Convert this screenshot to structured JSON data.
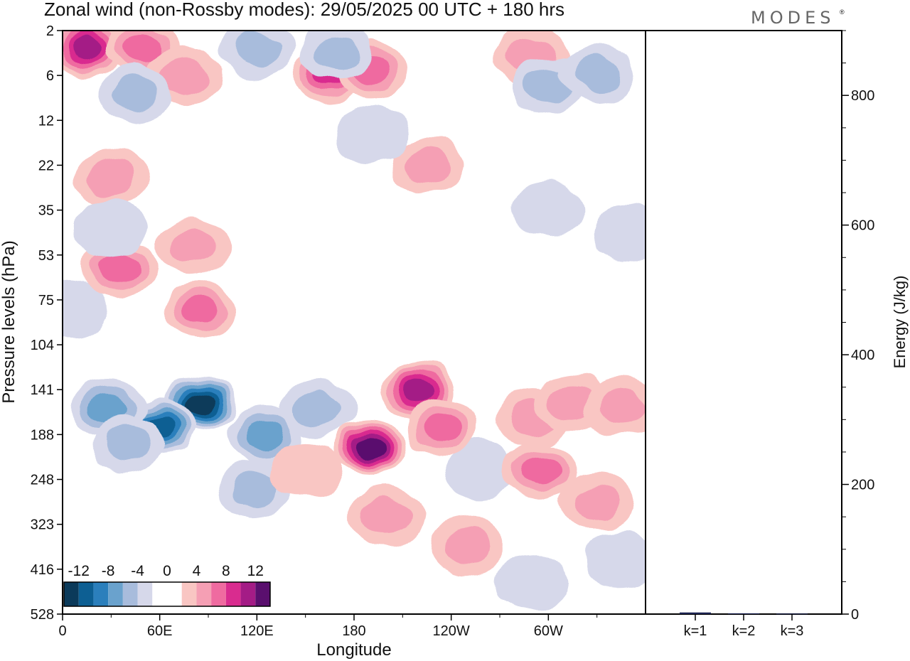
{
  "title": "Zonal wind (non-Rossby modes):  29/05/2025  00 UTC  + 180 hrs",
  "brand": "MODES",
  "brand_mark": "®",
  "colors": {
    "negative": [
      "#0b3a5a",
      "#0d5f93",
      "#2b7fbc",
      "#6aa2cd",
      "#a8bcdc",
      "#d6d8ea"
    ],
    "zero": "#ffffff",
    "positive": [
      "#f9c6c3",
      "#f59fb4",
      "#ef6ba0",
      "#d92c8f",
      "#a41c86",
      "#5a0f6e"
    ],
    "bar": "#1d2452",
    "axis": "#000000"
  },
  "chart_data": [
    {
      "type": "heatmap",
      "title": "Zonal wind (non-Rossby modes):  29/05/2025  00 UTC  + 180 hrs",
      "xlabel": "Longitude",
      "ylabel": "Pressure levels (hPa)",
      "x_ticks": [
        "0",
        "60E",
        "120E",
        "180",
        "120W",
        "60W"
      ],
      "x_tick_degrees": [
        0,
        60,
        120,
        180,
        240,
        300
      ],
      "x_range": [
        0,
        360
      ],
      "y_ticks": [
        "2",
        "6",
        "12",
        "22",
        "35",
        "53",
        "75",
        "104",
        "141",
        "188",
        "248",
        "323",
        "416",
        "528"
      ],
      "legend": {
        "position": "bottom-left",
        "labels": [
          "-12",
          "-8",
          "-4",
          "0",
          "4",
          "8",
          "12"
        ],
        "levels": [
          -12,
          -10,
          -8,
          -6,
          -4,
          -2,
          0,
          2,
          4,
          6,
          8,
          10,
          12
        ]
      },
      "features": [
        {
          "lon": 85,
          "level": 8.3,
          "value": -13
        },
        {
          "lon": 60,
          "level": 8.8,
          "value": -10
        },
        {
          "lon": 28,
          "level": 8.4,
          "value": -6
        },
        {
          "lon": 125,
          "level": 9.0,
          "value": -6
        },
        {
          "lon": 118,
          "level": 10.2,
          "value": -4
        },
        {
          "lon": 40,
          "level": 9.2,
          "value": -4
        },
        {
          "lon": 5,
          "level": 6.2,
          "value": -2
        },
        {
          "lon": 158,
          "level": 8.4,
          "value": -3
        },
        {
          "lon": 258,
          "level": 9.8,
          "value": -2
        },
        {
          "lon": 290,
          "level": 12.3,
          "value": -2
        },
        {
          "lon": 345,
          "level": 11.8,
          "value": -2
        },
        {
          "lon": 190,
          "level": 9.3,
          "value": 12
        },
        {
          "lon": 220,
          "level": 8.0,
          "value": 9
        },
        {
          "lon": 235,
          "level": 8.8,
          "value": 5
        },
        {
          "lon": 295,
          "level": 9.8,
          "value": 6
        },
        {
          "lon": 290,
          "level": 8.6,
          "value": 4
        },
        {
          "lon": 315,
          "level": 8.3,
          "value": 4
        },
        {
          "lon": 345,
          "level": 8.4,
          "value": 3
        },
        {
          "lon": 250,
          "level": 11.5,
          "value": 3
        },
        {
          "lon": 330,
          "level": 10.5,
          "value": 3
        },
        {
          "lon": 200,
          "level": 10.8,
          "value": 4
        },
        {
          "lon": 150,
          "level": 9.8,
          "value": 2
        },
        {
          "lon": 85,
          "level": 6.2,
          "value": 5
        },
        {
          "lon": 35,
          "level": 5.3,
          "value": 5
        },
        {
          "lon": 15,
          "level": 0.4,
          "value": 9
        },
        {
          "lon": 50,
          "level": 0.4,
          "value": 5
        },
        {
          "lon": 75,
          "level": 1.0,
          "value": 4
        },
        {
          "lon": 165,
          "level": 1.0,
          "value": 8
        },
        {
          "lon": 190,
          "level": 0.9,
          "value": 5
        },
        {
          "lon": 290,
          "level": 0.6,
          "value": 4
        },
        {
          "lon": 45,
          "level": 1.4,
          "value": -4
        },
        {
          "lon": 170,
          "level": 0.5,
          "value": -4
        },
        {
          "lon": 300,
          "level": 1.2,
          "value": -4
        },
        {
          "lon": 330,
          "level": 1.0,
          "value": -3
        },
        {
          "lon": 120,
          "level": 0.4,
          "value": -3
        },
        {
          "lon": 80,
          "level": 4.8,
          "value": 3
        },
        {
          "lon": 225,
          "level": 3.0,
          "value": 3
        },
        {
          "lon": 30,
          "level": 3.3,
          "value": 3
        },
        {
          "lon": 30,
          "level": 4.4,
          "value": -2
        },
        {
          "lon": 190,
          "level": 2.3,
          "value": -2
        },
        {
          "lon": 350,
          "level": 4.5,
          "value": -2
        },
        {
          "lon": 300,
          "level": 4.0,
          "value": -2
        }
      ]
    },
    {
      "type": "bar",
      "categories": [
        "k=1",
        "k=2",
        "k=3"
      ],
      "values": [
        2.5,
        1.2,
        0.8
      ],
      "ylabel": "Energy (J/kg)",
      "y_ticks": [
        "0",
        "200",
        "400",
        "600",
        "800"
      ],
      "ylim": [
        0,
        900
      ]
    }
  ]
}
